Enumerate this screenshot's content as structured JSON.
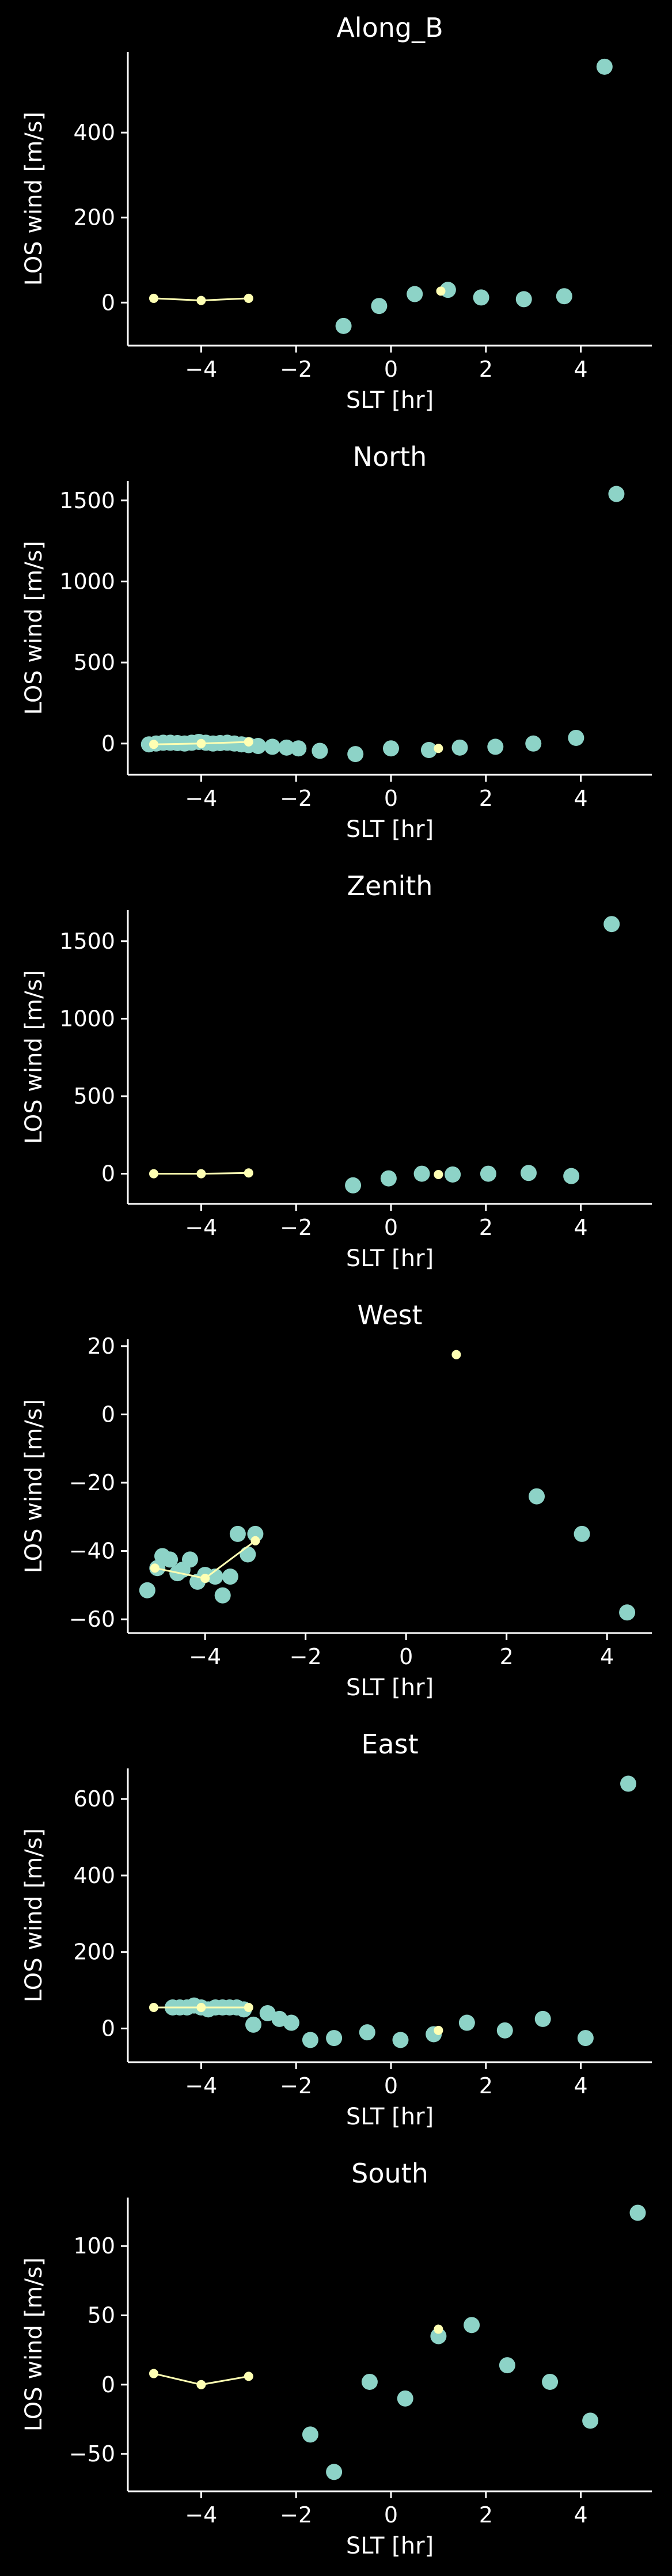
{
  "colors": {
    "background": "#000000",
    "axes": "#ffffff",
    "scatter_series": "#8dd3c7",
    "line_series": "#feffb3"
  },
  "chart_data": [
    {
      "type": "scatter",
      "title": "Along_B",
      "xlabel": "SLT [hr]",
      "ylabel": "LOS wind [m/s]",
      "xlim": [
        -5.4,
        5.4
      ],
      "ylim": [
        -85,
        590
      ],
      "xticks": [
        -4,
        -2,
        0,
        2,
        4
      ],
      "xtick_labels": [
        "−4",
        "−2",
        "0",
        "2",
        "4"
      ],
      "yticks": [
        0,
        200,
        400
      ],
      "ytick_labels": [
        "0",
        "200",
        "400"
      ],
      "grid": false,
      "series": [
        {
          "kind": "scatter",
          "x": [
            -1.0,
            -0.25,
            0.5,
            1.2,
            1.9,
            2.8,
            3.65,
            4.5
          ],
          "y": [
            -55,
            -8,
            20,
            30,
            12,
            8,
            15,
            555
          ]
        },
        {
          "kind": "line",
          "x": [
            -5.0,
            -4.0,
            -3.0
          ],
          "y": [
            10,
            5,
            10
          ]
        },
        {
          "kind": "points",
          "x": [
            1.05
          ],
          "y": [
            27
          ]
        }
      ]
    },
    {
      "type": "scatter",
      "title": "North",
      "xlabel": "SLT [hr]",
      "ylabel": "LOS wind [m/s]",
      "xlim": [
        -5.4,
        5.4
      ],
      "ylim": [
        -150,
        1620
      ],
      "xticks": [
        -4,
        -2,
        0,
        2,
        4
      ],
      "xtick_labels": [
        "−4",
        "−2",
        "0",
        "2",
        "4"
      ],
      "yticks": [
        0,
        500,
        1000,
        1500
      ],
      "ytick_labels": [
        "0",
        "500",
        "1000",
        "1500"
      ],
      "grid": false,
      "series": [
        {
          "kind": "scatter",
          "x": [
            -5.1,
            -4.95,
            -4.8,
            -4.65,
            -4.5,
            -4.35,
            -4.2,
            -4.05,
            -3.9,
            -3.75,
            -3.6,
            -3.45,
            -3.3,
            -3.15,
            -3.0,
            -2.8,
            -2.5,
            -2.2,
            -1.95,
            -1.5,
            -0.75,
            0.0,
            0.8,
            1.45,
            2.2,
            3.0,
            3.9,
            4.75
          ],
          "y": [
            -5,
            0,
            5,
            5,
            3,
            0,
            5,
            10,
            5,
            0,
            3,
            5,
            0,
            -5,
            -10,
            -15,
            -20,
            -25,
            -30,
            -45,
            -65,
            -30,
            -40,
            -25,
            -20,
            0,
            35,
            1540
          ]
        },
        {
          "kind": "line",
          "x": [
            -5.0,
            -4.0,
            -3.0
          ],
          "y": [
            -5,
            0,
            10
          ]
        },
        {
          "kind": "points",
          "x": [
            1.0
          ],
          "y": [
            -30
          ]
        }
      ]
    },
    {
      "type": "scatter",
      "title": "Zenith",
      "xlabel": "SLT [hr]",
      "ylabel": "LOS wind [m/s]",
      "xlim": [
        -5.4,
        5.4
      ],
      "ylim": [
        -150,
        1700
      ],
      "xticks": [
        -4,
        -2,
        0,
        2,
        4
      ],
      "xtick_labels": [
        "−4",
        "−2",
        "0",
        "2",
        "4"
      ],
      "yticks": [
        0,
        500,
        1000,
        1500
      ],
      "ytick_labels": [
        "0",
        "500",
        "1000",
        "1500"
      ],
      "grid": false,
      "series": [
        {
          "kind": "scatter",
          "x": [
            -0.8,
            -0.05,
            0.65,
            1.3,
            2.05,
            2.9,
            3.8,
            4.65
          ],
          "y": [
            -75,
            -30,
            0,
            -5,
            0,
            5,
            -15,
            1610
          ]
        },
        {
          "kind": "line",
          "x": [
            -5.0,
            -4.0,
            -3.0
          ],
          "y": [
            0,
            0,
            5
          ]
        },
        {
          "kind": "points",
          "x": [
            1.0
          ],
          "y": [
            -5
          ]
        }
      ]
    },
    {
      "type": "scatter",
      "title": "West",
      "xlabel": "SLT [hr]",
      "ylabel": "LOS wind [m/s]",
      "xlim": [
        -5.4,
        4.8
      ],
      "ylim": [
        -62,
        22
      ],
      "xticks": [
        -4,
        -2,
        0,
        2,
        4
      ],
      "xtick_labels": [
        "−4",
        "−2",
        "0",
        "2",
        "4"
      ],
      "yticks": [
        -60,
        -40,
        -20,
        0,
        20
      ],
      "ytick_labels": [
        "−60",
        "−40",
        "−20",
        "0",
        "20"
      ],
      "grid": false,
      "series": [
        {
          "kind": "scatter",
          "x": [
            -5.15,
            -4.95,
            -4.85,
            -4.7,
            -4.55,
            -4.45,
            -4.3,
            -4.15,
            -4.0,
            -3.8,
            -3.65,
            -3.5,
            -3.35,
            -3.15,
            -3.0,
            2.6,
            3.5,
            4.4
          ],
          "y": [
            -51.5,
            -45,
            -41.5,
            -42.5,
            -46.5,
            -45.5,
            -42.5,
            -49,
            -47,
            -47.5,
            -53,
            -47.5,
            -35,
            -41,
            -35,
            -24,
            -35,
            -58
          ]
        },
        {
          "kind": "line",
          "x": [
            -5.0,
            -4.0,
            -3.0
          ],
          "y": [
            -45,
            -48,
            -37
          ]
        },
        {
          "kind": "points",
          "x": [
            1.0
          ],
          "y": [
            17.5
          ]
        }
      ]
    },
    {
      "type": "scatter",
      "title": "East",
      "xlabel": "SLT [hr]",
      "ylabel": "LOS wind [m/s]",
      "xlim": [
        -5.4,
        5.4
      ],
      "ylim": [
        -70,
        680
      ],
      "xticks": [
        -4,
        -2,
        0,
        2,
        4
      ],
      "xtick_labels": [
        "−4",
        "−2",
        "0",
        "2",
        "4"
      ],
      "yticks": [
        0,
        200,
        400,
        600
      ],
      "ytick_labels": [
        "0",
        "200",
        "400",
        "600"
      ],
      "grid": false,
      "series": [
        {
          "kind": "scatter",
          "x": [
            -4.6,
            -4.45,
            -4.3,
            -4.15,
            -4.0,
            -3.85,
            -3.7,
            -3.55,
            -3.4,
            -3.25,
            -3.1,
            -2.9,
            -2.6,
            -2.35,
            -2.1,
            -1.7,
            -1.2,
            -0.5,
            0.2,
            0.9,
            1.6,
            2.4,
            3.2,
            4.1,
            5.0
          ],
          "y": [
            55,
            55,
            55,
            60,
            55,
            50,
            55,
            55,
            55,
            55,
            50,
            10,
            40,
            25,
            15,
            -30,
            -25,
            -10,
            -30,
            -15,
            15,
            -5,
            25,
            -25,
            640
          ]
        },
        {
          "kind": "line",
          "x": [
            -5.0,
            -4.0,
            -3.0
          ],
          "y": [
            55,
            55,
            55
          ]
        },
        {
          "kind": "points",
          "x": [
            1.0
          ],
          "y": [
            -5
          ]
        }
      ]
    },
    {
      "type": "scatter",
      "title": "South",
      "xlabel": "SLT [hr]",
      "ylabel": "LOS wind [m/s]",
      "xlim": [
        -5.4,
        5.4
      ],
      "ylim": [
        -72,
        135
      ],
      "xticks": [
        -4,
        -2,
        0,
        2,
        4
      ],
      "xtick_labels": [
        "−4",
        "−2",
        "0",
        "2",
        "4"
      ],
      "yticks": [
        -50,
        0,
        50,
        100
      ],
      "ytick_labels": [
        "−50",
        "0",
        "50",
        "100"
      ],
      "grid": false,
      "series": [
        {
          "kind": "scatter",
          "x": [
            -1.7,
            -1.2,
            -0.45,
            0.3,
            1.0,
            1.7,
            2.45,
            3.35,
            4.2,
            5.2
          ],
          "y": [
            -36,
            -63,
            2,
            -10,
            35,
            43,
            14,
            2,
            -26,
            124
          ]
        },
        {
          "kind": "line",
          "x": [
            -5.0,
            -4.0,
            -3.0
          ],
          "y": [
            8,
            0,
            6
          ]
        },
        {
          "kind": "points",
          "x": [
            1.0
          ],
          "y": [
            40
          ]
        }
      ]
    }
  ]
}
